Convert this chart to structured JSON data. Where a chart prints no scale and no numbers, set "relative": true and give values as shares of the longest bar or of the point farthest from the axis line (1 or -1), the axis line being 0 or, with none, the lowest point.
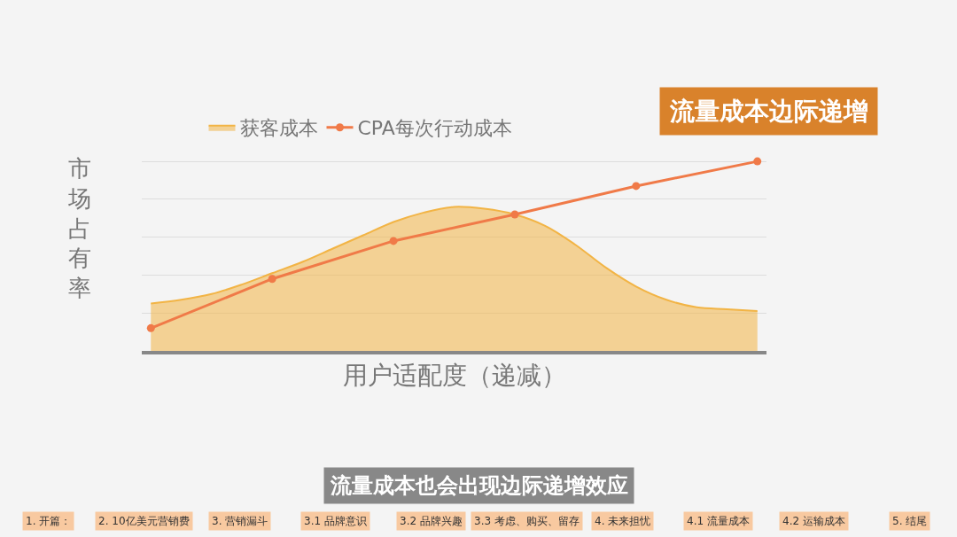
{
  "chart_data": {
    "type": "line",
    "title": "流量成本边际递增",
    "xlabel": "用户适配度（递减）",
    "ylabel": "市场占有率",
    "relative": true,
    "grid": "y",
    "legend": "top left",
    "marker": "circle",
    "categories": [
      null,
      null,
      null,
      null,
      null,
      null,
      null,
      null,
      null,
      null,
      null,
      null,
      null,
      null,
      null,
      null,
      null,
      null,
      null,
      null,
      null
    ],
    "series": [
      {
        "name": "获客成本",
        "type": "area",
        "color": "#f2b445",
        "marker": "none",
        "values": [
          0.25,
          0.27,
          0.3,
          0.35,
          0.41,
          0.47,
          0.54,
          0.61,
          0.68,
          0.73,
          0.76,
          0.75,
          0.72,
          0.66,
          0.56,
          0.44,
          0.34,
          0.27,
          0.23,
          0.22,
          0.21
        ]
      },
      {
        "name": "CPA每次行动成本",
        "color": "#f07a48",
        "values": [
          0.12,
          null,
          null,
          null,
          0.38,
          null,
          null,
          null,
          0.58,
          null,
          null,
          null,
          0.72,
          null,
          null,
          null,
          0.87,
          null,
          null,
          null,
          1
        ]
      }
    ],
    "annotations": [
      "流量成本也会出现边际递增效应",
      "1. 开篇：",
      "2. 10亿美元营销费",
      "3. 营销漏斗",
      "3.1 品牌意识",
      "3.2 品牌兴趣",
      "3.3 考虑、购买、留存",
      "4. 未来担忧",
      "4.1 流量成本",
      "4.2 运输成本",
      "5. 结尾"
    ]
  }
}
